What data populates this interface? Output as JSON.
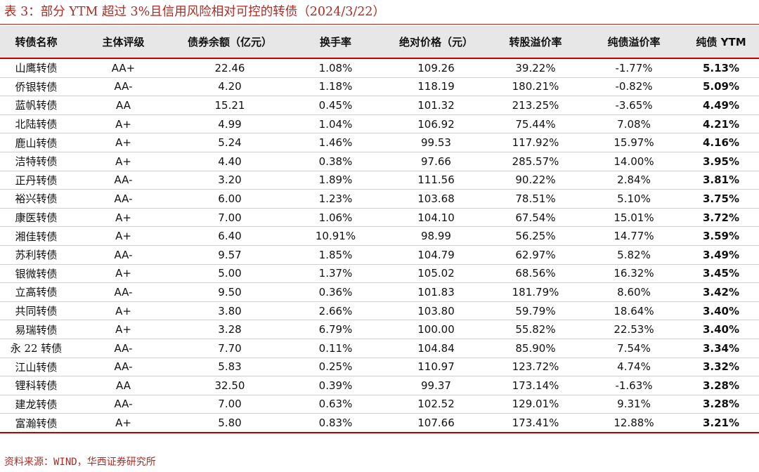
{
  "title": "表 3：部分 YTM 超过 3%且信用风险相对可控的转债（2024/3/22）",
  "source": "资料来源：WIND，华西证券研究所",
  "colors": {
    "accent": "#b02a22",
    "header_bg": "#e7e7e7",
    "rule": "#c00000"
  },
  "table": {
    "headers": [
      "转债名称",
      "主体评级",
      "债券余额（亿元）",
      "换手率",
      "绝对价格（元）",
      "转股溢价率",
      "纯债溢价率",
      "纯债 YTM"
    ],
    "rows": [
      [
        "山鹰转债",
        "AA+",
        "22.46",
        "1.08%",
        "109.26",
        "39.22%",
        "-1.77%",
        "5.13%"
      ],
      [
        "侨银转债",
        "AA-",
        "4.20",
        "1.18%",
        "118.19",
        "180.21%",
        "-0.82%",
        "5.09%"
      ],
      [
        "蓝帆转债",
        "AA",
        "15.21",
        "0.45%",
        "101.32",
        "213.25%",
        "-3.65%",
        "4.49%"
      ],
      [
        "北陆转债",
        "A+",
        "4.99",
        "1.04%",
        "106.92",
        "75.44%",
        "7.08%",
        "4.21%"
      ],
      [
        "鹿山转债",
        "A+",
        "5.24",
        "1.46%",
        "99.53",
        "117.92%",
        "15.97%",
        "4.16%"
      ],
      [
        "洁特转债",
        "A+",
        "4.40",
        "0.38%",
        "97.66",
        "285.57%",
        "14.00%",
        "3.95%"
      ],
      [
        "正丹转债",
        "AA-",
        "3.20",
        "1.89%",
        "111.56",
        "90.22%",
        "2.84%",
        "3.81%"
      ],
      [
        "裕兴转债",
        "AA-",
        "6.00",
        "1.23%",
        "103.68",
        "78.51%",
        "5.10%",
        "3.75%"
      ],
      [
        "康医转债",
        "A+",
        "7.00",
        "1.06%",
        "104.10",
        "67.54%",
        "15.01%",
        "3.72%"
      ],
      [
        "湘佳转债",
        "A+",
        "6.40",
        "10.91%",
        "98.99",
        "56.25%",
        "14.77%",
        "3.59%"
      ],
      [
        "苏利转债",
        "AA-",
        "9.57",
        "1.85%",
        "104.79",
        "62.97%",
        "5.82%",
        "3.49%"
      ],
      [
        "银微转债",
        "A+",
        "5.00",
        "1.37%",
        "105.02",
        "68.56%",
        "16.32%",
        "3.45%"
      ],
      [
        "立高转债",
        "AA-",
        "9.50",
        "0.36%",
        "101.83",
        "181.79%",
        "8.60%",
        "3.42%"
      ],
      [
        "共同转债",
        "A+",
        "3.80",
        "2.66%",
        "103.80",
        "59.79%",
        "18.64%",
        "3.40%"
      ],
      [
        "易瑞转债",
        "A+",
        "3.28",
        "6.79%",
        "100.00",
        "55.82%",
        "22.53%",
        "3.40%"
      ],
      [
        "永 22 转债",
        "AA-",
        "7.70",
        "0.11%",
        "104.84",
        "85.90%",
        "7.54%",
        "3.34%"
      ],
      [
        "江山转债",
        "AA-",
        "5.83",
        "0.25%",
        "110.97",
        "123.72%",
        "4.74%",
        "3.32%"
      ],
      [
        "锂科转债",
        "AA",
        "32.50",
        "0.39%",
        "99.37",
        "173.14%",
        "-1.63%",
        "3.28%"
      ],
      [
        "建龙转债",
        "AA-",
        "7.00",
        "0.63%",
        "102.52",
        "129.01%",
        "9.31%",
        "3.28%"
      ],
      [
        "富瀚转债",
        "A+",
        "5.80",
        "0.83%",
        "107.66",
        "173.41%",
        "12.88%",
        "3.21%"
      ]
    ]
  }
}
